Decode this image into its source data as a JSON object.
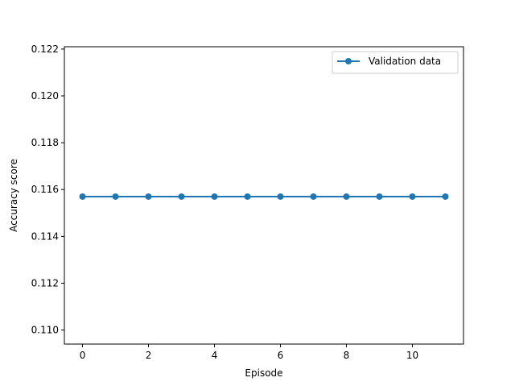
{
  "chart_data": {
    "type": "line",
    "title": "",
    "xlabel": "Episode",
    "ylabel": "Accuracy score",
    "xlim": [
      -0.55,
      11.55
    ],
    "ylim": [
      0.1094,
      0.1221
    ],
    "x_ticks": [
      0,
      2,
      4,
      6,
      8,
      10
    ],
    "x_tick_labels": [
      "0",
      "2",
      "4",
      "6",
      "8",
      "10"
    ],
    "y_ticks": [
      0.11,
      0.112,
      0.114,
      0.116,
      0.118,
      0.12,
      0.122
    ],
    "y_tick_labels": [
      "0.110",
      "0.112",
      "0.114",
      "0.116",
      "0.118",
      "0.120",
      "0.122"
    ],
    "grid": false,
    "legend_position": "top-right",
    "series": [
      {
        "name": "Validation data",
        "color": "#1f77b4",
        "marker": "circle",
        "x": [
          0,
          1,
          2,
          3,
          4,
          5,
          6,
          7,
          8,
          9,
          10,
          11
        ],
        "y": [
          0.1157,
          0.1157,
          0.1157,
          0.1157,
          0.1157,
          0.1157,
          0.1157,
          0.1157,
          0.1157,
          0.1157,
          0.1157,
          0.1157
        ]
      }
    ]
  }
}
